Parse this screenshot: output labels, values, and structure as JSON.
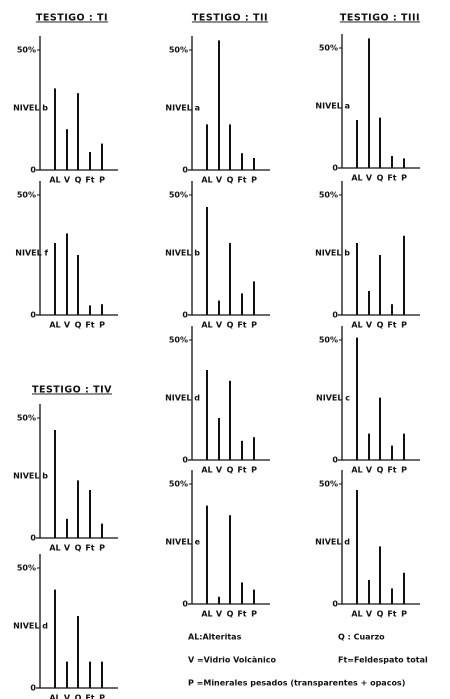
{
  "headers": [
    "TESTIGO : TI",
    "TESTIGO : TII",
    "TESTIGO : TIII",
    "TESTIGO : TIV"
  ],
  "legend": [
    "AL:Alteritas",
    "Q : Cuarzo",
    "V =Vidrio Volcànico",
    "Ft=Feldespato total",
    "P =Minerales pesados (transparentes + opacos)"
  ],
  "chart_data": [
    {
      "type": "bar",
      "ylabel": "NIVEL b",
      "categories": [
        "AL",
        "V",
        "Q",
        "Ft",
        "P"
      ],
      "values": [
        34,
        17,
        32,
        7.5,
        11
      ],
      "color": "#111111",
      "ylim": [
        0,
        55
      ],
      "yticks": [
        0,
        {
          "value": 50,
          "label": "50%"
        }
      ]
    },
    {
      "type": "bar",
      "ylabel": "NIVEL f",
      "categories": [
        "AL",
        "V",
        "Q",
        "Ft",
        "P"
      ],
      "values": [
        30,
        34,
        25,
        4,
        4.5
      ],
      "color": "#111111",
      "ylim": [
        0,
        55
      ],
      "yticks": [
        0,
        {
          "value": 50,
          "label": "50%"
        }
      ]
    },
    {
      "type": "bar",
      "ylabel": "NIVEL a",
      "categories": [
        "AL",
        "V",
        "Q",
        "Ft",
        "P"
      ],
      "values": [
        19,
        54,
        19,
        7,
        5
      ],
      "color": "#111111",
      "ylim": [
        0,
        55
      ],
      "yticks": [
        0,
        {
          "value": 50,
          "label": "50%"
        }
      ]
    },
    {
      "type": "bar",
      "ylabel": "NIVEL b",
      "categories": [
        "AL",
        "V",
        "Q",
        "Ft",
        "P"
      ],
      "values": [
        45,
        6,
        30,
        9,
        14
      ],
      "color": "#111111",
      "ylim": [
        0,
        55
      ],
      "yticks": [
        0,
        {
          "value": 50,
          "label": "50%"
        }
      ]
    },
    {
      "type": "bar",
      "ylabel": "NIVEL d",
      "categories": [
        "AL",
        "V",
        "Q",
        "Ft",
        "P"
      ],
      "values": [
        37.5,
        17.5,
        33,
        8,
        9.5
      ],
      "color": "#111111",
      "ylim": [
        0,
        55
      ],
      "yticks": [
        0,
        {
          "value": 50,
          "label": "50%"
        }
      ]
    },
    {
      "type": "bar",
      "ylabel": "NIVEL e",
      "categories": [
        "AL",
        "V",
        "Q",
        "Ft",
        "P"
      ],
      "values": [
        41,
        3,
        37,
        9,
        6
      ],
      "color": "#111111",
      "ylim": [
        0,
        55
      ],
      "yticks": [
        0,
        {
          "value": 50,
          "label": "50%"
        }
      ]
    },
    {
      "type": "bar",
      "ylabel": "NIVEL a",
      "categories": [
        "AL",
        "V",
        "Q",
        "Ft",
        "P"
      ],
      "values": [
        20,
        54,
        21,
        5,
        4
      ],
      "color": "#111111",
      "ylim": [
        0,
        55
      ],
      "yticks": [
        0,
        {
          "value": 50,
          "label": "50%"
        }
      ]
    },
    {
      "type": "bar",
      "ylabel": "NIVEL b",
      "categories": [
        "AL",
        "V",
        "Q",
        "Ft",
        "P"
      ],
      "values": [
        30,
        10,
        25,
        4.5,
        33
      ],
      "color": "#111111",
      "ylim": [
        0,
        55
      ],
      "yticks": [
        0,
        {
          "value": 50,
          "label": "50%"
        }
      ]
    },
    {
      "type": "bar",
      "ylabel": "NIVEL c",
      "categories": [
        "AL",
        "V",
        "Q",
        "Ft",
        "P"
      ],
      "values": [
        51,
        11,
        26,
        6,
        11
      ],
      "color": "#111111",
      "ylim": [
        0,
        55
      ],
      "yticks": [
        0,
        {
          "value": 50,
          "label": "50%"
        }
      ]
    },
    {
      "type": "bar",
      "ylabel": "NIVEL d",
      "categories": [
        "AL",
        "V",
        "Q",
        "Ft",
        "P"
      ],
      "values": [
        47.5,
        10,
        24,
        6.5,
        13
      ],
      "color": "#111111",
      "ylim": [
        0,
        55
      ],
      "yticks": [
        0,
        {
          "value": 50,
          "label": "50%"
        }
      ]
    },
    {
      "type": "bar",
      "ylabel": "NIVEL b",
      "categories": [
        "AL",
        "V",
        "Q",
        "Ft",
        "P"
      ],
      "values": [
        45,
        8,
        24,
        20,
        6
      ],
      "color": "#111111",
      "ylim": [
        0,
        55
      ],
      "yticks": [
        0,
        {
          "value": 50,
          "label": "50%"
        }
      ]
    },
    {
      "type": "bar",
      "ylabel": "NIVEL d",
      "categories": [
        "AL",
        "V",
        "Q",
        "Ft",
        "P"
      ],
      "values": [
        41,
        11,
        30,
        11,
        11
      ],
      "color": "#111111",
      "ylim": [
        0,
        55
      ],
      "yticks": [
        0,
        {
          "value": 50,
          "label": "50%"
        }
      ]
    }
  ]
}
